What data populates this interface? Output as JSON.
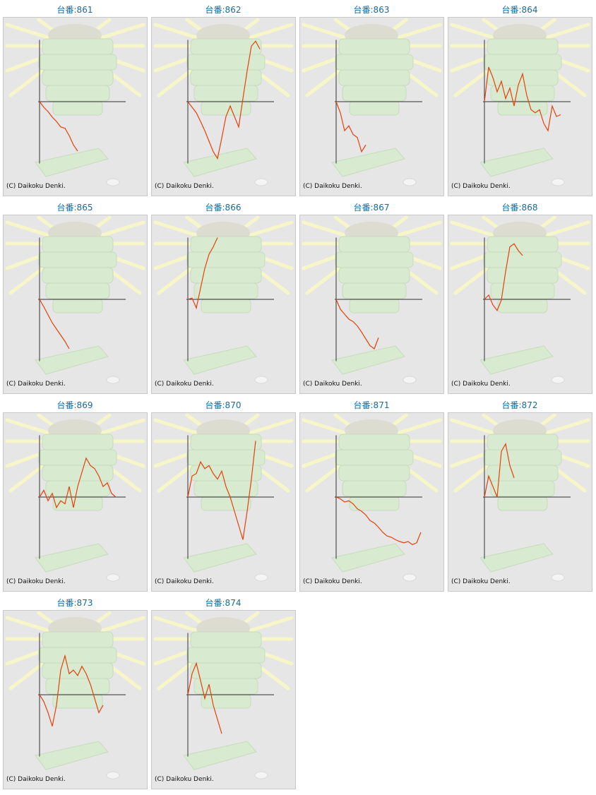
{
  "xlim": [
    0,
    20
  ],
  "ylim": [
    -100,
    100
  ],
  "cards": [
    {
      "title": "台番:861",
      "copyright": "(C) Daikoku Denki.",
      "chart": {
        "type": "line",
        "color": "#e8400a",
        "values": [
          0,
          -9,
          -16,
          -25,
          -32,
          -41,
          -43,
          -55,
          -70,
          -80
        ]
      }
    },
    {
      "title": "台番:862",
      "copyright": "(C) Daikoku Denki.",
      "chart": {
        "type": "line",
        "color": "#e8400a",
        "values": [
          0,
          -9,
          -18,
          -32,
          -47,
          -64,
          -81,
          -92,
          -59,
          -24,
          -7,
          -24,
          -41,
          5,
          50,
          90,
          98,
          85
        ]
      }
    },
    {
      "title": "台番:863",
      "copyright": "(C) Daikoku Denki.",
      "chart": {
        "type": "line",
        "color": "#e8400a",
        "values": [
          0,
          -18,
          -47,
          -39,
          -53,
          -58,
          -81,
          -70
        ]
      }
    },
    {
      "title": "台番:864",
      "copyright": "(C) Daikoku Denki.",
      "chart": {
        "type": "line",
        "color": "#e8400a",
        "values": [
          0,
          56,
          39,
          16,
          33,
          5,
          22,
          -7,
          27,
          45,
          10,
          -13,
          -18,
          -13,
          -35,
          -47,
          -7,
          -24,
          -21
        ]
      }
    },
    {
      "title": "台番:865",
      "copyright": "(C) Daikoku Denki.",
      "chart": {
        "type": "line",
        "color": "#e8400a",
        "values": [
          0,
          -12,
          -25,
          -38,
          -48,
          -58,
          -68,
          -80
        ]
      }
    },
    {
      "title": "台番:866",
      "copyright": "(C) Daikoku Denki.",
      "chart": {
        "type": "line",
        "color": "#e8400a",
        "values": [
          0,
          2,
          -14,
          18,
          50,
          73,
          85,
          100
        ]
      }
    },
    {
      "title": "台番:867",
      "copyright": "(C) Daikoku Denki.",
      "chart": {
        "type": "line",
        "color": "#e8400a",
        "values": [
          0,
          -16,
          -24,
          -32,
          -36,
          -43,
          -53,
          -64,
          -75,
          -80,
          -62
        ]
      }
    },
    {
      "title": "台番:868",
      "copyright": "(C) Daikoku Denki.",
      "chart": {
        "type": "line",
        "color": "#e8400a",
        "values": [
          0,
          7,
          -9,
          -18,
          -1,
          45,
          85,
          90,
          79,
          71
        ]
      }
    },
    {
      "title": "台番:869",
      "copyright": "(C) Daikoku Denki.",
      "chart": {
        "type": "line",
        "color": "#e8400a",
        "values": [
          0,
          11,
          -6,
          6,
          -17,
          -6,
          -11,
          17,
          -17,
          17,
          40,
          63,
          51,
          46,
          34,
          17,
          23,
          6,
          0
        ]
      }
    },
    {
      "title": "台番:870",
      "copyright": "(C) Daikoku Denki.",
      "chart": {
        "type": "line",
        "color": "#e8400a",
        "values": [
          0,
          34,
          38,
          57,
          46,
          51,
          38,
          29,
          42,
          17,
          0,
          -23,
          -46,
          -69,
          -23,
          29,
          91
        ]
      }
    },
    {
      "title": "台番:871",
      "copyright": "(C) Daikoku Denki.",
      "chart": {
        "type": "line",
        "color": "#e8400a",
        "values": [
          0,
          -3,
          -8,
          -6,
          -11,
          -19,
          -23,
          -29,
          -38,
          -42,
          -49,
          -57,
          -63,
          -65,
          -69,
          -72,
          -74,
          -72,
          -77,
          -74,
          -57
        ]
      }
    },
    {
      "title": "台番:872",
      "copyright": "(C) Daikoku Denki.",
      "chart": {
        "type": "line",
        "color": "#e8400a",
        "values": [
          0,
          34,
          17,
          0,
          74,
          86,
          51,
          31
        ]
      }
    },
    {
      "title": "台番:873",
      "copyright": "(C) Daikoku Denki.",
      "chart": {
        "type": "line",
        "color": "#e8400a",
        "values": [
          0,
          -11,
          -29,
          -51,
          -17,
          40,
          63,
          34,
          40,
          31,
          46,
          34,
          17,
          -6,
          -29,
          -17
        ]
      }
    },
    {
      "title": "台番:874",
      "copyright": "(C) Daikoku Denki.",
      "chart": {
        "type": "line",
        "color": "#e8400a",
        "values": [
          0,
          34,
          51,
          23,
          -6,
          17,
          -17,
          -40,
          -63
        ]
      }
    }
  ]
}
